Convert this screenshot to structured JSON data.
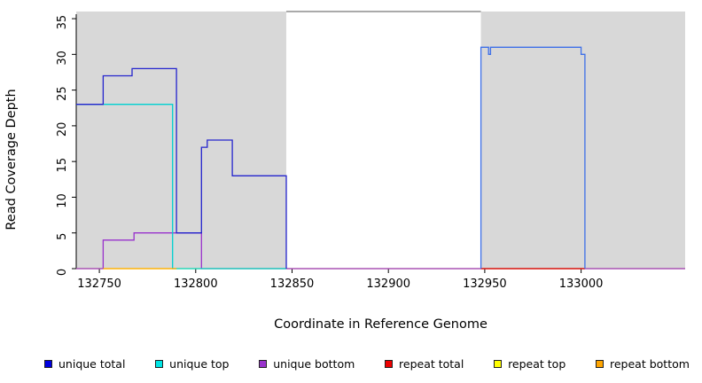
{
  "figure": {
    "background": "#ffffff",
    "xlabel": "Coordinate in Reference Genome",
    "ylabel": "Read Coverage Depth"
  },
  "chart_data": {
    "type": "line",
    "title": "",
    "xlabel": "Coordinate in Reference Genome",
    "ylabel": "Read Coverage Depth",
    "xlim": [
      132738,
      133054
    ],
    "ylim": [
      0,
      36
    ],
    "x_ticks": [
      132750,
      132800,
      132850,
      132900,
      132950,
      133000
    ],
    "y_ticks": [
      0,
      5,
      10,
      15,
      20,
      25,
      30,
      35
    ],
    "grid": false,
    "background_regions": [
      {
        "name": "left-gray",
        "x0": 132738,
        "x1": 132847,
        "color": "#d8d8d8"
      },
      {
        "name": "middle-white",
        "x0": 132847,
        "x1": 132948,
        "color": "#ffffff"
      },
      {
        "name": "right-gray",
        "x0": 132948,
        "x1": 133054,
        "color": "#d8d8d8"
      }
    ],
    "top_border_segment": {
      "x0": 132847,
      "x1": 132948,
      "y": 36,
      "color": "#555555"
    },
    "series": [
      {
        "name": "repeat top",
        "color": "#ffff00",
        "points": [
          [
            132738,
            0
          ],
          [
            133054,
            0
          ]
        ]
      },
      {
        "name": "unique bottom",
        "color": "#9932cc",
        "points": [
          [
            132738,
            0
          ],
          [
            132752,
            0
          ],
          [
            132752,
            4
          ],
          [
            132768,
            4
          ],
          [
            132768,
            5
          ],
          [
            132803,
            5
          ],
          [
            132803,
            0
          ],
          [
            133054,
            0
          ]
        ]
      },
      {
        "name": "unique top",
        "color": "#00d0d0",
        "points": [
          [
            132738,
            23
          ],
          [
            132788,
            23
          ],
          [
            132788,
            0
          ],
          [
            132847,
            0
          ]
        ]
      },
      {
        "name": "repeat bottom",
        "color": "#ffa500",
        "points": [
          [
            132752,
            0
          ],
          [
            132790,
            0
          ]
        ]
      },
      {
        "name": "repeat total",
        "color": "#dd0000",
        "points": [
          [
            132948,
            0
          ],
          [
            133002,
            0
          ]
        ]
      },
      {
        "name": "unique total left",
        "color": "#2424cd",
        "points": [
          [
            132738,
            23
          ],
          [
            132752,
            23
          ],
          [
            132752,
            27
          ],
          [
            132767,
            27
          ],
          [
            132767,
            28
          ],
          [
            132790,
            28
          ],
          [
            132790,
            5
          ],
          [
            132803,
            5
          ],
          [
            132803,
            17
          ],
          [
            132806,
            17
          ],
          [
            132806,
            18
          ],
          [
            132819,
            18
          ],
          [
            132819,
            13
          ],
          [
            132847,
            13
          ],
          [
            132847,
            0
          ]
        ]
      },
      {
        "name": "unique total right",
        "color": "#3d6fe8",
        "points": [
          [
            132948,
            0
          ],
          [
            132948,
            31
          ],
          [
            132952,
            31
          ],
          [
            132952,
            30
          ],
          [
            132953,
            30
          ],
          [
            132953,
            31
          ],
          [
            133000,
            31
          ],
          [
            133000,
            30
          ],
          [
            133002,
            30
          ],
          [
            133002,
            0
          ]
        ]
      }
    ],
    "legend_position": "bottom",
    "legend": [
      {
        "label": "unique total",
        "color": "#0000e0"
      },
      {
        "label": "unique top",
        "color": "#00e5e5"
      },
      {
        "label": "unique bottom",
        "color": "#9932cc"
      },
      {
        "label": "repeat total",
        "color": "#ee0000"
      },
      {
        "label": "repeat top",
        "color": "#ffff00"
      },
      {
        "label": "repeat bottom",
        "color": "#ffa500"
      }
    ]
  }
}
